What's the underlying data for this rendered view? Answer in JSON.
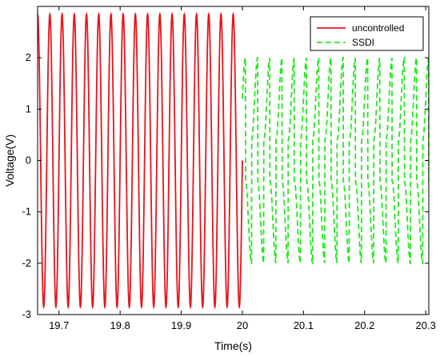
{
  "chart_data": {
    "type": "line",
    "xlabel": "Time(s)",
    "ylabel": "Voltage(V)",
    "xlim": [
      19.665,
      20.305
    ],
    "ylim": [
      -3,
      3
    ],
    "xticks": [
      19.7,
      19.8,
      19.9,
      20,
      20.1,
      20.2,
      20.3
    ],
    "xtick_labels": [
      "19.7",
      "19.8",
      "19.9",
      "20",
      "20.1",
      "20.2",
      "20.3"
    ],
    "yticks": [
      -3,
      -2,
      -1,
      0,
      1,
      2
    ],
    "ytick_labels": [
      "-3",
      "-2",
      "-1",
      "0",
      "1",
      "2"
    ],
    "grid": false,
    "legend_position": "top-right",
    "series": [
      {
        "name": "uncontrolled",
        "color": "#e8141b",
        "style": "solid",
        "waveform": "sine",
        "x_start": 19.665,
        "x_end": 20.0,
        "amplitude": 2.85,
        "offset": 0,
        "frequency_hz": 50
      },
      {
        "name": "SSDI",
        "color": "#22e81e",
        "style": "dashed",
        "waveform": "ssdi",
        "x_start": 20.0,
        "x_end": 20.305,
        "amplitude": 2.0,
        "offset": 0,
        "frequency_hz": 50
      }
    ]
  }
}
